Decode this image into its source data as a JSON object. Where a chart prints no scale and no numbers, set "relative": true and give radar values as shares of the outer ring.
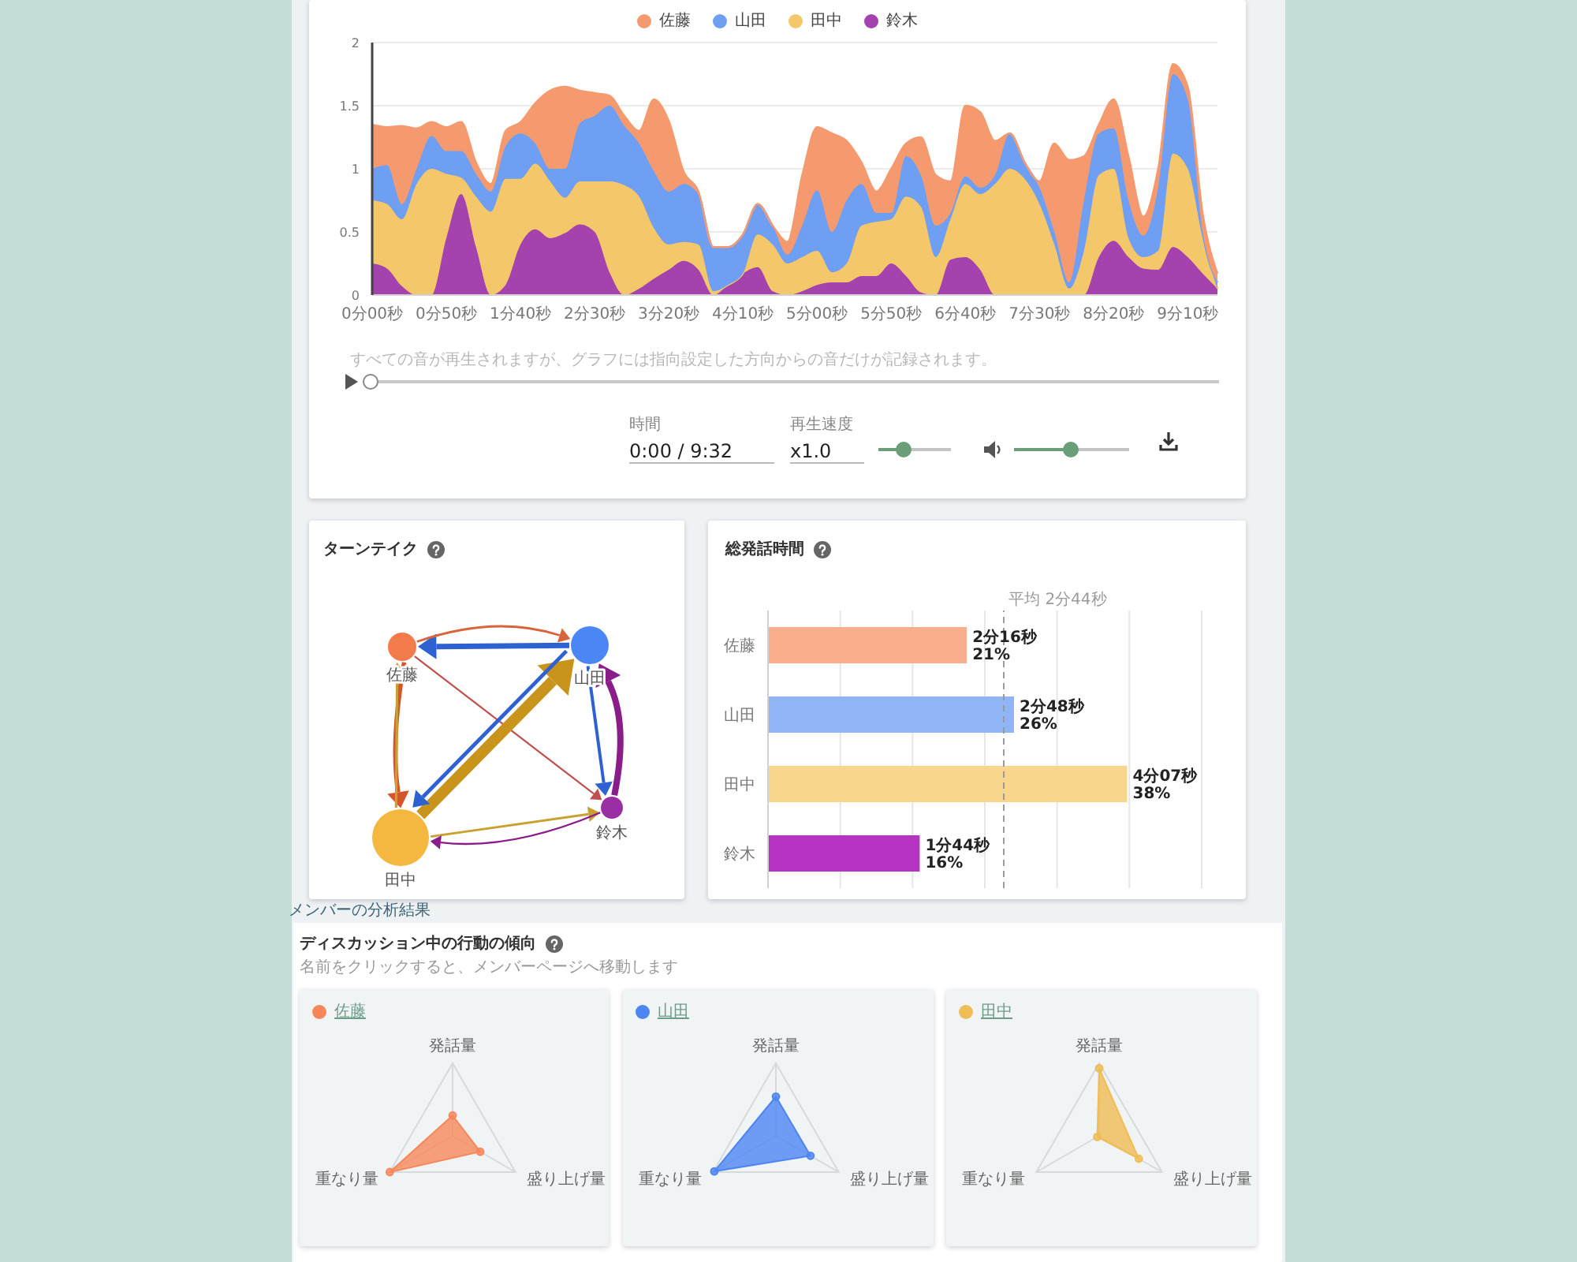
{
  "chart_data": [
    {
      "type": "area",
      "stacked": true,
      "legend": "top",
      "grid": "y",
      "categories": [
        "0分00秒",
        null,
        null,
        null,
        null,
        "0分50秒",
        null,
        null,
        null,
        null,
        "1分40秒",
        null,
        null,
        null,
        null,
        "2分30秒",
        null,
        null,
        null,
        null,
        "3分20秒",
        null,
        null,
        null,
        null,
        "4分10秒",
        null,
        null,
        null,
        null,
        "5分00秒",
        null,
        null,
        null,
        null,
        "5分50秒",
        null,
        null,
        null,
        null,
        "6分40秒",
        null,
        null,
        null,
        null,
        "7分30秒",
        null,
        null,
        null,
        null,
        "8分20秒",
        null,
        null,
        null,
        null,
        "9分10秒",
        null,
        null
      ],
      "ylim": [
        0,
        2
      ],
      "yticks": [
        0,
        0.5,
        1,
        1.5,
        2
      ],
      "series": [
        {
          "name": "鈴木",
          "color": "#a443ae",
          "values": [
            0.25,
            0.21,
            0.07,
            0,
            0,
            0.45,
            0.8,
            0.38,
            0,
            0.08,
            0.4,
            0.52,
            0.45,
            0.49,
            0.56,
            0.5,
            0.18,
            0,
            0.05,
            0.13,
            0.2,
            0.27,
            0.2,
            0,
            0.08,
            0.17,
            0.22,
            0.03,
            0,
            0.03,
            0.08,
            0.1,
            0.1,
            0.15,
            0.15,
            0.25,
            0.15,
            0.02,
            0,
            0.28,
            0.3,
            0.2,
            0,
            0,
            0,
            0,
            0,
            0,
            0,
            0.3,
            0.43,
            0.3,
            0.21,
            0.2,
            0.38,
            0.3,
            0.17,
            0.05
          ]
        },
        {
          "name": "田中",
          "color": "#f5c76b",
          "values": [
            0.5,
            0.51,
            0.53,
            0.88,
            1.0,
            0.51,
            0.13,
            0.4,
            0.66,
            0.84,
            0.52,
            0.52,
            0.45,
            0.28,
            0.34,
            0.4,
            0.72,
            0.87,
            0.73,
            0.4,
            0.2,
            0.15,
            0.2,
            0.03,
            0,
            0,
            0.26,
            0.37,
            0.25,
            0.27,
            0.27,
            0.08,
            0.15,
            0.4,
            0.43,
            0.35,
            0.63,
            0.68,
            0.3,
            0.32,
            0.58,
            0.6,
            0.88,
            1.0,
            0.92,
            0.72,
            0.4,
            0.05,
            0.35,
            0.65,
            0.57,
            0.15,
            0.09,
            0.15,
            0.74,
            0.7,
            0.28,
            0
          ]
        },
        {
          "name": "山田",
          "color": "#6f9ff2",
          "values": [
            0.25,
            0.31,
            0.12,
            0.12,
            0.26,
            0.18,
            0.21,
            0.18,
            0.16,
            0.26,
            0.36,
            0.16,
            0.1,
            0.23,
            0.46,
            0.52,
            0.6,
            0.47,
            0.42,
            0.45,
            0.42,
            0.46,
            0.4,
            0.35,
            0.3,
            0.31,
            0.24,
            0.15,
            0.07,
            0.25,
            0.48,
            0.32,
            0.5,
            0.33,
            0.07,
            0.05,
            0.32,
            0.25,
            0.25,
            0.05,
            0.06,
            0.05,
            0.07,
            0.28,
            0.13,
            0.13,
            0.1,
            0.05,
            0.4,
            0.33,
            0.32,
            0.3,
            0.17,
            0.5,
            0.63,
            0.55,
            0.05,
            0.05
          ]
        },
        {
          "name": "佐藤",
          "color": "#f59a6e",
          "values": [
            0.35,
            0.3,
            0.62,
            0.32,
            0.11,
            0.19,
            0.23,
            0.09,
            0.06,
            0.12,
            0.09,
            0.32,
            0.62,
            0.65,
            0.26,
            0.18,
            0.08,
            0.08,
            0.1,
            0.57,
            0.56,
            0.1,
            0.02,
            0,
            0,
            0,
            0,
            0,
            0.1,
            0.4,
            0.5,
            0.78,
            0.47,
            0.17,
            0.17,
            0.35,
            0.1,
            0.3,
            0.4,
            0.25,
            0.56,
            0.6,
            0.27,
            0,
            0,
            0.05,
            0.7,
            0.97,
            0.35,
            0.07,
            0.23,
            0.35,
            0.15,
            0.15,
            0.08,
            0.1,
            0.15,
            0.07
          ]
        }
      ],
      "annotations": [
        "すべての音が再生されますが、グラフには指向設定した方向からの音だけが記録されます。",
        "時間",
        "0:00 / 9:32",
        "再生速度",
        "x1.0"
      ]
    },
    {
      "type": "other",
      "title": "ターンテイク",
      "annotations": [
        "佐藤",
        "山田",
        "田中",
        "鈴木"
      ]
    },
    {
      "type": "bar",
      "orientation": "horizontal",
      "title": "総発話時間",
      "categories": [
        "佐藤",
        "山田",
        "田中",
        "鈴木"
      ],
      "values": [
        21,
        26,
        38,
        16
      ],
      "colors": [
        "#fbae8c",
        "#8fb5f7",
        "#f8d68e",
        "#b534c1"
      ],
      "value_labels": [
        "2分16秒\n21%",
        "2分48秒\n26%",
        "4分07秒\n38%",
        "1分44秒\n16%"
      ],
      "grid": "x",
      "tick_labels": "y",
      "ref_lines": [
        {
          "axis": "x",
          "value": 25,
          "label": "平均 2分44秒",
          "line_style": "dashed"
        }
      ]
    },
    {
      "type": "other",
      "title": "ディスカッション中の行動の傾向",
      "subtitle": "名前をクリックすると、メンバーページへ移動します",
      "annotations": [
        "メンバーの分析結果"
      ]
    },
    {
      "type": "radar",
      "relative": true,
      "grid": true,
      "legend": "top left",
      "marker": "circle",
      "categories": [
        "発話量",
        "盛り上げ量",
        "重なり量"
      ],
      "series": [
        {
          "name": "佐藤",
          "color": "#f7875a",
          "values": [
            0.28,
            0.44,
            1
          ]
        }
      ]
    },
    {
      "type": "radar",
      "relative": true,
      "grid": true,
      "legend": "top left",
      "marker": "circle",
      "categories": [
        "発話量",
        "盛り上げ量",
        "重なり量"
      ],
      "series": [
        {
          "name": "山田",
          "color": "#4d85f2",
          "values": [
            0.54,
            0.55,
            0.98
          ]
        }
      ]
    },
    {
      "type": "radar",
      "relative": true,
      "grid": true,
      "legend": "top left",
      "marker": "circle",
      "categories": [
        "発話量",
        "盛り上げ量",
        "重なり量"
      ],
      "series": [
        {
          "name": "田中",
          "color": "#f0bd55",
          "values": [
            0.93,
            0.63,
            0.03
          ]
        }
      ]
    }
  ]
}
